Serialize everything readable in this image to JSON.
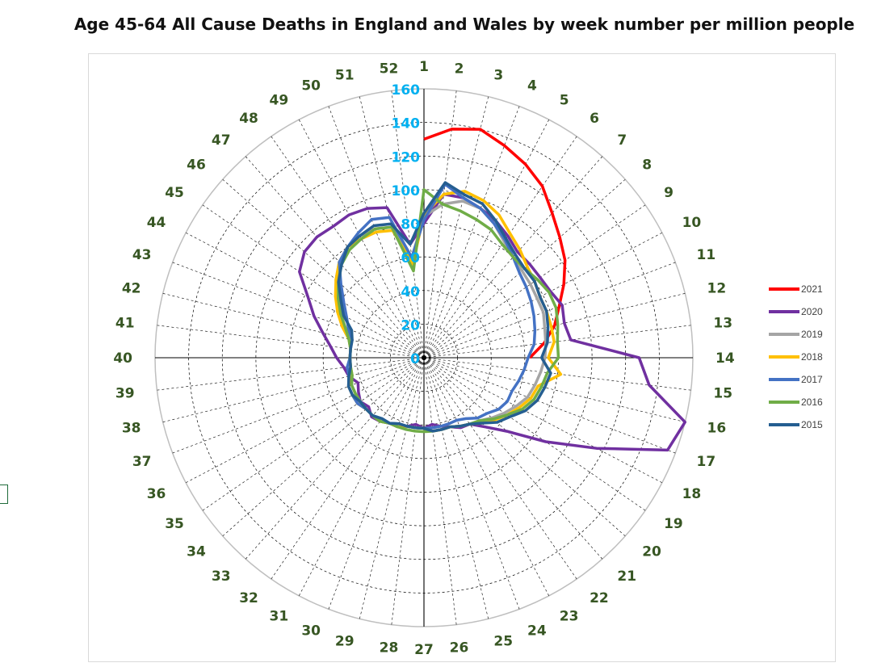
{
  "chart_data": {
    "type": "radar",
    "title": "Age 45-64 All Cause Deaths in England and Wales by week number per million people",
    "categories": [
      "1",
      "2",
      "3",
      "4",
      "5",
      "6",
      "7",
      "8",
      "9",
      "10",
      "11",
      "12",
      "13",
      "14",
      "15",
      "16",
      "17",
      "18",
      "19",
      "20",
      "21",
      "22",
      "23",
      "24",
      "25",
      "26",
      "27",
      "28",
      "29",
      "30",
      "31",
      "32",
      "33",
      "34",
      "35",
      "36",
      "37",
      "38",
      "39",
      "40",
      "41",
      "42",
      "43",
      "44",
      "45",
      "46",
      "47",
      "48",
      "49",
      "50",
      "51",
      "52"
    ],
    "radial_axis": {
      "min": 0,
      "max": 160,
      "step": 20,
      "ticks": [
        "0",
        "20",
        "40",
        "60",
        "80",
        "100",
        "120",
        "140",
        "160"
      ]
    },
    "grid": true,
    "legend_position": "right",
    "series": [
      {
        "name": "2021",
        "color": "#ff0000",
        "values": [
          130,
          137,
          140,
          135,
          130,
          124,
          115,
          108,
          102,
          94,
          86,
          80,
          72,
          63,
          null,
          null,
          null,
          null,
          null,
          null,
          null,
          null,
          null,
          null,
          null,
          null,
          null,
          null,
          null,
          null,
          null,
          null,
          null,
          null,
          null,
          null,
          null,
          null,
          null,
          null,
          null,
          null,
          null,
          null,
          null,
          null,
          null,
          null,
          null,
          null,
          null,
          null
        ]
      },
      {
        "name": "2020",
        "color": "#7030a0",
        "values": [
          80,
          98,
          98,
          95,
          92,
          88,
          84,
          84,
          84,
          85,
          88,
          86,
          88,
          128,
          135,
          160,
          155,
          116,
          88,
          66,
          55,
          48,
          47,
          44,
          42,
          40,
          42,
          40,
          42,
          44,
          44,
          46,
          47,
          44,
          46,
          44,
          42,
          46,
          48,
          52,
          56,
          62,
          70,
          78,
          90,
          95,
          96,
          95,
          96,
          95,
          92,
          68
        ]
      },
      {
        "name": "2019",
        "color": "#a5a5a5",
        "values": [
          84,
          92,
          96,
          95,
          90,
          84,
          80,
          78,
          77,
          76,
          76,
          74,
          73,
          72,
          70,
          68,
          66,
          62,
          58,
          54,
          50,
          48,
          46,
          44,
          44,
          44,
          42,
          42,
          42,
          44,
          44,
          46,
          46,
          46,
          46,
          46,
          46,
          46,
          44,
          44,
          44,
          46,
          50,
          56,
          62,
          70,
          76,
          80,
          82,
          82,
          80,
          60
        ]
      },
      {
        "name": "2018",
        "color": "#ffc000",
        "values": [
          85,
          98,
          102,
          100,
          96,
          90,
          86,
          82,
          80,
          78,
          78,
          78,
          78,
          74,
          82,
          70,
          68,
          64,
          60,
          56,
          52,
          48,
          46,
          44,
          44,
          44,
          42,
          42,
          42,
          44,
          44,
          46,
          46,
          46,
          48,
          48,
          48,
          44,
          44,
          44,
          44,
          46,
          52,
          58,
          64,
          70,
          76,
          80,
          80,
          80,
          78,
          56
        ]
      },
      {
        "name": "2017",
        "color": "#4472c4",
        "values": [
          82,
          104,
          98,
          95,
          90,
          85,
          80,
          76,
          74,
          72,
          70,
          68,
          66,
          62,
          60,
          58,
          56,
          56,
          54,
          50,
          48,
          44,
          42,
          42,
          42,
          42,
          42,
          42,
          42,
          42,
          44,
          44,
          46,
          46,
          48,
          48,
          48,
          46,
          46,
          44,
          44,
          44,
          48,
          52,
          58,
          66,
          76,
          80,
          84,
          88,
          86,
          60
        ]
      },
      {
        "name": "2016",
        "color": "#70ad47",
        "values": [
          100,
          92,
          90,
          88,
          86,
          82,
          80,
          80,
          82,
          84,
          84,
          82,
          80,
          80,
          74,
          72,
          70,
          66,
          60,
          55,
          50,
          48,
          46,
          44,
          44,
          44,
          44,
          44,
          44,
          44,
          44,
          46,
          46,
          46,
          46,
          46,
          46,
          44,
          44,
          44,
          44,
          46,
          50,
          56,
          62,
          68,
          74,
          78,
          80,
          82,
          80,
          52
        ]
      },
      {
        "name": "2015",
        "color": "#255e91",
        "values": [
          86,
          105,
          100,
          98,
          92,
          86,
          82,
          80,
          80,
          78,
          78,
          76,
          74,
          70,
          76,
          74,
          72,
          68,
          62,
          58,
          52,
          48,
          46,
          44,
          44,
          44,
          42,
          42,
          42,
          42,
          44,
          44,
          46,
          46,
          46,
          48,
          48,
          46,
          44,
          44,
          44,
          44,
          46,
          54,
          60,
          68,
          74,
          80,
          82,
          84,
          82,
          68
        ]
      }
    ]
  }
}
